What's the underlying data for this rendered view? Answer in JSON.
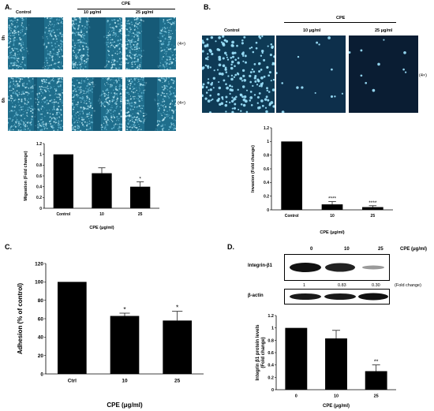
{
  "panelA": {
    "letter": "A.",
    "header": "CPE",
    "columns": [
      "Control",
      "10 μg/ml",
      "25 μg/ml"
    ],
    "rows": [
      "0h",
      "6h"
    ],
    "magnification": "(4×)",
    "chart_data": {
      "type": "bar",
      "categories": [
        "Control",
        "10",
        "25"
      ],
      "values": [
        1.0,
        0.65,
        0.4
      ],
      "errors": [
        0,
        0.1,
        0.09
      ],
      "significance": [
        "",
        "",
        "*"
      ],
      "xlabel": "CPE (μg/ml)",
      "ylabel": "Migeation (Fold change)",
      "ylim": [
        0,
        1.2
      ],
      "yticks": [
        "0",
        "0.2",
        "0.4",
        "0.6",
        "0.8",
        "1",
        "1.2"
      ]
    }
  },
  "panelB": {
    "letter": "B.",
    "header": "CPE",
    "columns": [
      "Control",
      "10 μg/ml",
      "25 μg/ml"
    ],
    "magnification": "(4×)",
    "chart_data": {
      "type": "bar",
      "categories": [
        "Control",
        "10",
        "25"
      ],
      "values": [
        1.0,
        0.08,
        0.04
      ],
      "errors": [
        0,
        0.04,
        0.02
      ],
      "significance": [
        "",
        "****",
        "****"
      ],
      "xlabel": "CPE (μg/ml)",
      "ylabel": "Invasion (Fold change)",
      "ylim": [
        0,
        1.2
      ],
      "yticks": [
        "0",
        "0.2",
        "0.4",
        "0.6",
        "0.8",
        "1",
        "1.2"
      ]
    }
  },
  "panelC": {
    "letter": "C.",
    "chart_data": {
      "type": "bar",
      "categories": [
        "Ctrl",
        "10",
        "25"
      ],
      "values": [
        100,
        63,
        58
      ],
      "errors": [
        0,
        3,
        10
      ],
      "significance": [
        "",
        "*",
        "*"
      ],
      "xlabel": "CPE  (μg/ml)",
      "ylabel": "Adhesion (% of control)",
      "ylim": [
        0,
        120
      ],
      "yticks": [
        "0",
        "20",
        "40",
        "60",
        "80",
        "100",
        "120"
      ]
    }
  },
  "panelD": {
    "letter": "D.",
    "header_conc": [
      "0",
      "10",
      "25"
    ],
    "header_label": "CPE (μg/ml)",
    "integrin_label": "Integrin-β1",
    "fold_values": [
      "1",
      "0.83",
      "0.30"
    ],
    "fold_label": "(Fold change)",
    "actin_label": "β-actin",
    "chart_data": {
      "type": "bar",
      "categories": [
        "0",
        "10",
        "25"
      ],
      "values": [
        1.0,
        0.83,
        0.3
      ],
      "errors": [
        0,
        0.13,
        0.1
      ],
      "significance": [
        "",
        "",
        "**"
      ],
      "xlabel": "CPE  (μg/ml)",
      "ylabel": "Integrin β1 protein levels (Fold change)",
      "ylim": [
        0,
        1.2
      ],
      "yticks": [
        "0",
        "0.2",
        "0.4",
        "0.6",
        "0.8",
        "1",
        "1.2"
      ]
    }
  }
}
